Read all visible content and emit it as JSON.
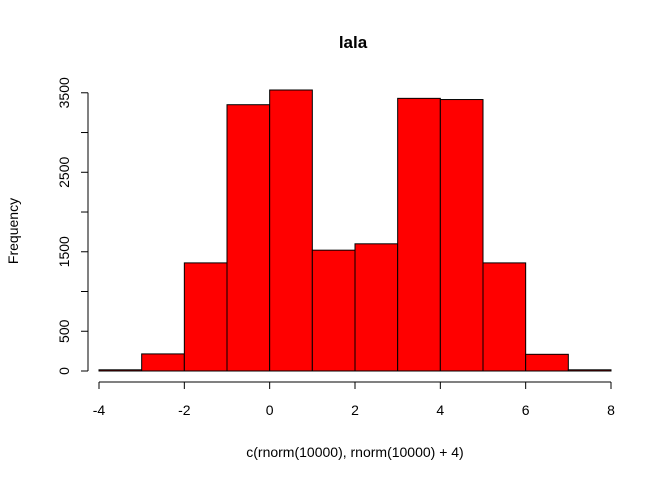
{
  "chart_data": {
    "type": "bar",
    "title": "lala",
    "xlabel": "c(rnorm(10000), rnorm(10000) + 4)",
    "ylabel": "Frequency",
    "bins": [
      {
        "x0": -4,
        "x1": -3,
        "count": 15
      },
      {
        "x0": -3,
        "x1": -2,
        "count": 215
      },
      {
        "x0": -2,
        "x1": -1,
        "count": 1360
      },
      {
        "x0": -1,
        "x1": 0,
        "count": 3350
      },
      {
        "x0": 0,
        "x1": 1,
        "count": 3535
      },
      {
        "x0": 1,
        "x1": 2,
        "count": 1520
      },
      {
        "x0": 2,
        "x1": 3,
        "count": 1600
      },
      {
        "x0": 3,
        "x1": 4,
        "count": 3430
      },
      {
        "x0": 4,
        "x1": 5,
        "count": 3415
      },
      {
        "x0": 5,
        "x1": 6,
        "count": 1360
      },
      {
        "x0": 6,
        "x1": 7,
        "count": 210
      },
      {
        "x0": 7,
        "x1": 8,
        "count": 15
      }
    ],
    "xlim": [
      -4,
      8
    ],
    "ylim": [
      0,
      3535
    ],
    "x_ticks": [
      "-4",
      "-2",
      "0",
      "2",
      "4",
      "6",
      "8"
    ],
    "y_ticks": [
      "0",
      "500",
      "1500",
      "2500",
      "3500"
    ],
    "bar_color": "#ff0000",
    "grid": false,
    "legend": "none"
  }
}
